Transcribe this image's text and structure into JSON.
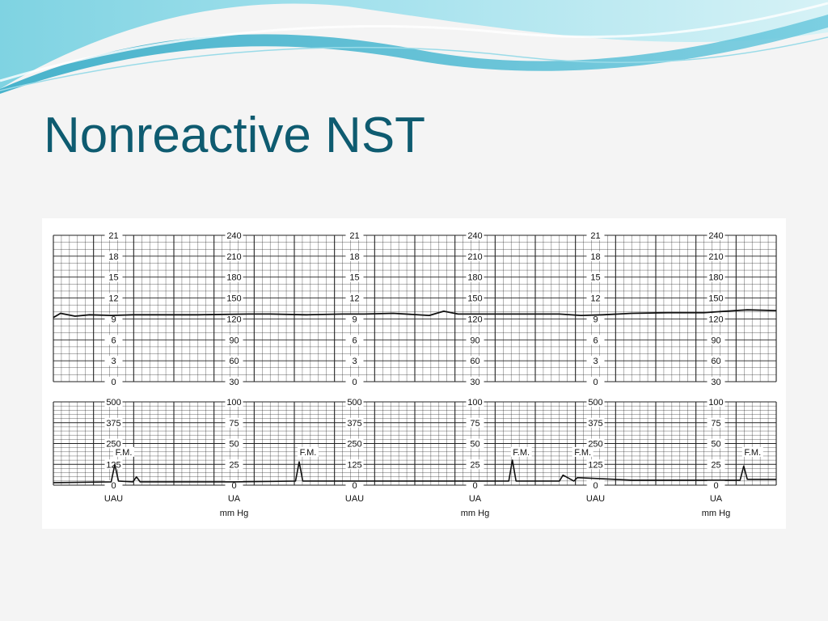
{
  "slide": {
    "title": "Nonreactive NST"
  },
  "colors": {
    "title": "#0e5b70",
    "background": "#f4f4f4",
    "grid": "#222222",
    "trace": "#111111",
    "banner_light": "#cdeef3",
    "banner_mid": "#7fd3e2",
    "banner_dark": "#2aa7c4"
  },
  "strip": {
    "fhr_labels_left": [
      "21",
      "18",
      "15",
      "12",
      "9",
      "6",
      "3",
      "0"
    ],
    "fhr_labels_right": [
      "240",
      "210",
      "180",
      "150",
      "120",
      "90",
      "60",
      "30"
    ],
    "ua_labels_left": [
      "500",
      "375",
      "250",
      "125",
      "0"
    ],
    "ua_labels_right": [
      "100",
      "75",
      "50",
      "25",
      "0"
    ],
    "left_unit": "UAU",
    "right_unit_line1": "UA",
    "right_unit_line2": "mm Hg",
    "fm_label": "F.M."
  },
  "chart_data": {
    "type": "line",
    "series": [
      {
        "name": "FHR",
        "x": [
          0,
          0.01,
          0.03,
          0.05,
          0.08,
          0.11,
          0.14,
          0.2,
          0.27,
          0.3,
          0.35,
          0.4,
          0.43,
          0.47,
          0.52,
          0.54,
          0.56,
          0.6,
          0.65,
          0.7,
          0.73,
          0.76,
          0.8,
          0.85,
          0.9,
          0.93,
          0.96,
          1.0
        ],
        "values": [
          122,
          128,
          124,
          126,
          125,
          126,
          126,
          126,
          127,
          127,
          126,
          127,
          127,
          128,
          125,
          131,
          127,
          127,
          127,
          127,
          125,
          126,
          128,
          129,
          129,
          131,
          133,
          132
        ]
      },
      {
        "name": "UA",
        "x": [
          0,
          0.08,
          0.085,
          0.09,
          0.11,
          0.115,
          0.12,
          0.25,
          0.335,
          0.34,
          0.345,
          0.45,
          0.63,
          0.635,
          0.64,
          0.7,
          0.705,
          0.72,
          0.725,
          0.8,
          0.95,
          0.955,
          0.96,
          1.0
        ],
        "values": [
          3,
          4,
          25,
          5,
          4,
          10,
          4,
          4,
          5,
          28,
          5,
          5,
          5,
          30,
          5,
          5,
          12,
          5,
          9,
          6,
          6,
          23,
          7,
          7
        ]
      }
    ],
    "annotations": [
      "F.M.",
      "F.M.",
      "F.M.",
      "F.M.",
      "F.M."
    ],
    "ylim_fhr": [
      30,
      240
    ],
    "ylim_ua": [
      0,
      100
    ]
  }
}
